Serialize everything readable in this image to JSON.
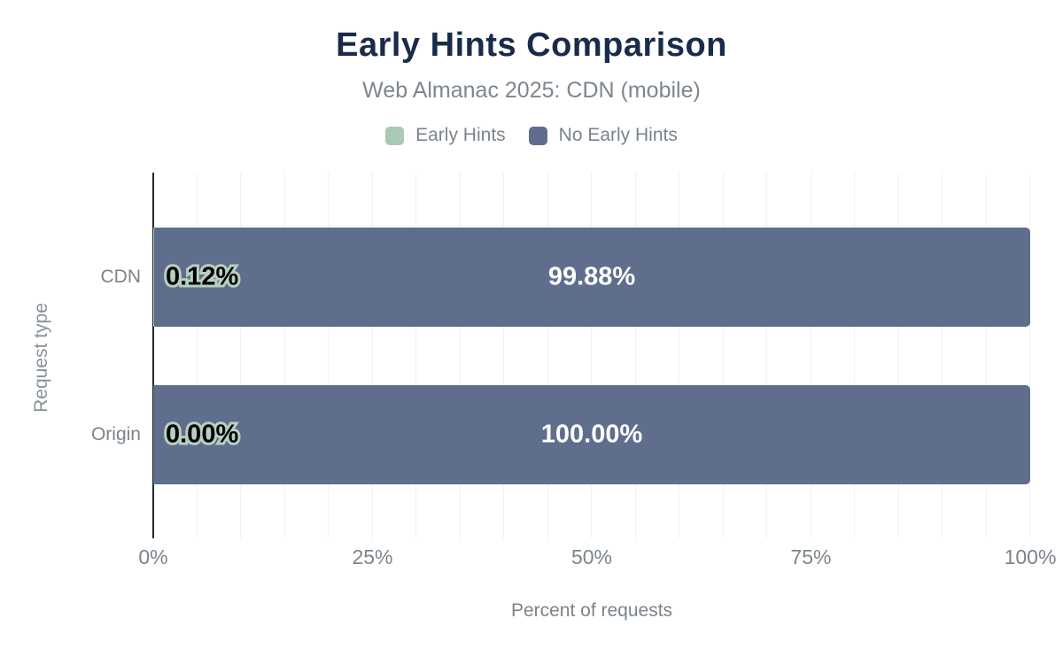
{
  "header": {
    "title": "Early Hints Comparison",
    "subtitle": "Web Almanac 2025: CDN (mobile)"
  },
  "legend": [
    {
      "label": "Early Hints",
      "color": "#abc7b6"
    },
    {
      "label": "No Early Hints",
      "color": "#5f6e8c"
    }
  ],
  "chart_data": {
    "type": "bar",
    "orientation": "horizontal",
    "stacked": true,
    "title": "Early Hints Comparison",
    "subtitle": "Web Almanac 2025: CDN (mobile)",
    "categories": [
      "CDN",
      "Origin"
    ],
    "series": [
      {
        "name": "Early Hints",
        "color": "#abc7b6",
        "values": [
          0.12,
          0.0
        ],
        "labels": [
          "0.12%",
          "0.00%"
        ]
      },
      {
        "name": "No Early Hints",
        "color": "#5f6e8c",
        "values": [
          99.88,
          100.0
        ],
        "labels": [
          "99.88%",
          "100.00%"
        ]
      }
    ],
    "xlabel": "Percent of requests",
    "ylabel": "Request type",
    "xlim": [
      0,
      100
    ],
    "x_ticks": [
      {
        "label": "0%",
        "value": 0
      },
      {
        "label": "25%",
        "value": 25
      },
      {
        "label": "50%",
        "value": 50
      },
      {
        "label": "75%",
        "value": 75
      },
      {
        "label": "100%",
        "value": 100
      }
    ],
    "grid": "vertical minor gridlines every 5%",
    "legend_position": "top"
  },
  "colors": {
    "title": "#1a2b4a",
    "muted_text": "#7b848b",
    "early_hints": "#abc7b6",
    "no_early_hints": "#5f6e8c",
    "label_outline": "#b7cfc2",
    "gridline": "#f0f1f3",
    "axis_line": "#262626",
    "background": "#ffffff"
  }
}
